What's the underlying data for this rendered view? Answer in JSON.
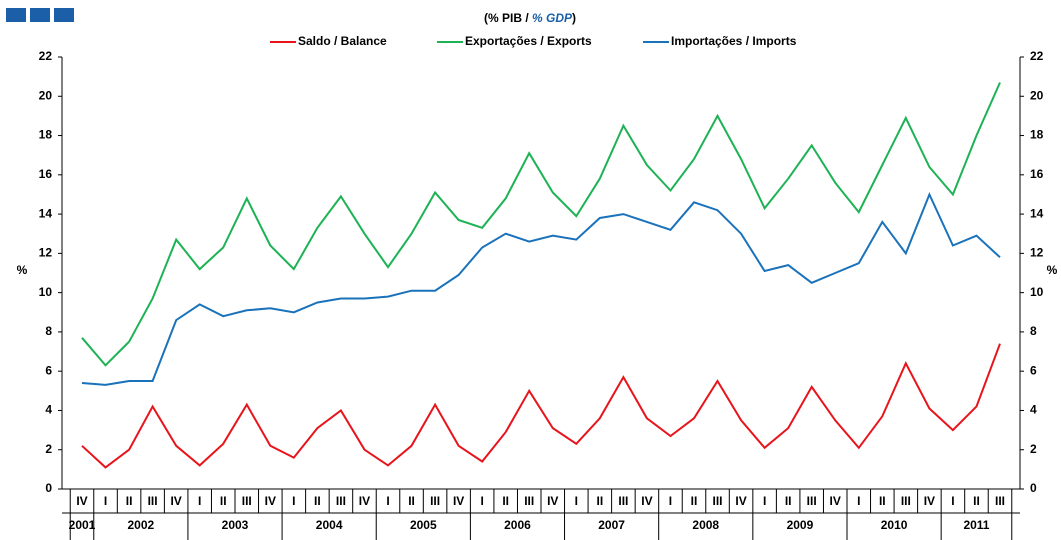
{
  "chart_data": {
    "type": "line",
    "subtitle": [
      "(% PIB /",
      "% GDP",
      ")"
    ],
    "y_label": "%",
    "y2_label": "%",
    "categories": [
      "IV",
      "I",
      "II",
      "III",
      "IV",
      "I",
      "II",
      "III",
      "IV",
      "I",
      "II",
      "III",
      "IV",
      "I",
      "II",
      "III",
      "IV",
      "I",
      "II",
      "III",
      "IV",
      "I",
      "II",
      "III",
      "IV",
      "I",
      "II",
      "III",
      "IV",
      "I",
      "II",
      "III",
      "IV",
      "I",
      "II",
      "III",
      "IV",
      "I",
      "II",
      "III"
    ],
    "years": [
      "2001",
      "2002",
      "2003",
      "2004",
      "2005",
      "2006",
      "2007",
      "2008",
      "2009",
      "2010",
      "2011"
    ],
    "series": [
      {
        "name": "Saldo / Balance",
        "color": "#e8141c",
        "values": [
          2.2,
          1.1,
          2.0,
          4.2,
          2.2,
          1.2,
          2.3,
          4.3,
          2.2,
          1.6,
          3.1,
          4.0,
          2.0,
          1.2,
          2.2,
          4.3,
          2.2,
          1.4,
          2.9,
          5.0,
          3.1,
          2.3,
          3.6,
          5.7,
          3.6,
          2.7,
          3.6,
          5.5,
          3.5,
          2.1,
          3.1,
          5.2,
          3.5,
          2.1,
          3.7,
          6.4,
          4.1,
          3.0,
          4.2,
          7.4
        ]
      },
      {
        "name": "Exportações / Exports",
        "color": "#1db254",
        "values": [
          7.7,
          6.3,
          7.5,
          9.7,
          12.7,
          11.2,
          12.3,
          14.8,
          12.4,
          11.2,
          13.3,
          14.9,
          13.0,
          11.3,
          13.0,
          15.1,
          13.7,
          13.3,
          14.8,
          17.1,
          15.1,
          13.9,
          15.8,
          18.5,
          16.5,
          15.2,
          16.8,
          19.0,
          16.8,
          14.3,
          15.8,
          17.5,
          15.6,
          14.1,
          16.5,
          18.9,
          16.4,
          15.0,
          18.0,
          20.7
        ]
      },
      {
        "name": "Importações / Imports",
        "color": "#1a72bb",
        "values": [
          5.4,
          5.3,
          5.5,
          5.5,
          8.6,
          9.4,
          8.8,
          9.1,
          9.2,
          9.0,
          9.5,
          9.7,
          9.7,
          9.8,
          10.1,
          10.1,
          10.9,
          12.3,
          13.0,
          12.6,
          12.9,
          12.7,
          13.8,
          14.0,
          13.6,
          13.2,
          14.6,
          14.2,
          13.0,
          11.1,
          11.4,
          10.5,
          11.0,
          11.5,
          13.6,
          12.0,
          15.0,
          12.4,
          12.9,
          11.8
        ]
      }
    ],
    "ylim": [
      0,
      22
    ],
    "yticks": [
      0,
      2,
      4,
      6,
      8,
      10,
      12,
      14,
      16,
      18,
      20,
      22
    ],
    "y2lim": [
      0,
      22
    ],
    "y2ticks": [
      0,
      2,
      4,
      6,
      8,
      10,
      12,
      14,
      16,
      18,
      20,
      22
    ],
    "legend": "top"
  }
}
